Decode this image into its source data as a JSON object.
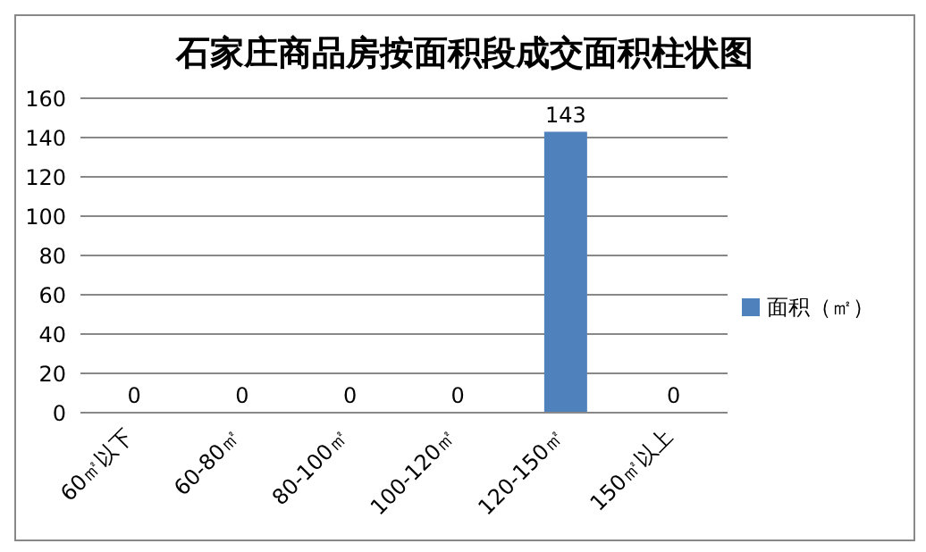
{
  "chart_data": {
    "type": "bar",
    "title": "石家庄商品房按面积段成交面积柱状图",
    "categories": [
      "60㎡以下",
      "60-80㎡",
      "80-100㎡",
      "100-120㎡",
      "120-150㎡",
      "150㎡以上"
    ],
    "series": [
      {
        "name": "面积（㎡）",
        "color": "#4f81bd",
        "values": [
          0,
          0,
          0,
          0,
          143,
          0
        ]
      }
    ],
    "ylim": [
      0,
      160
    ],
    "yticks": [
      0,
      20,
      40,
      60,
      80,
      100,
      120,
      140,
      160
    ],
    "grid": "y",
    "legend": "right",
    "data_labels": true
  }
}
